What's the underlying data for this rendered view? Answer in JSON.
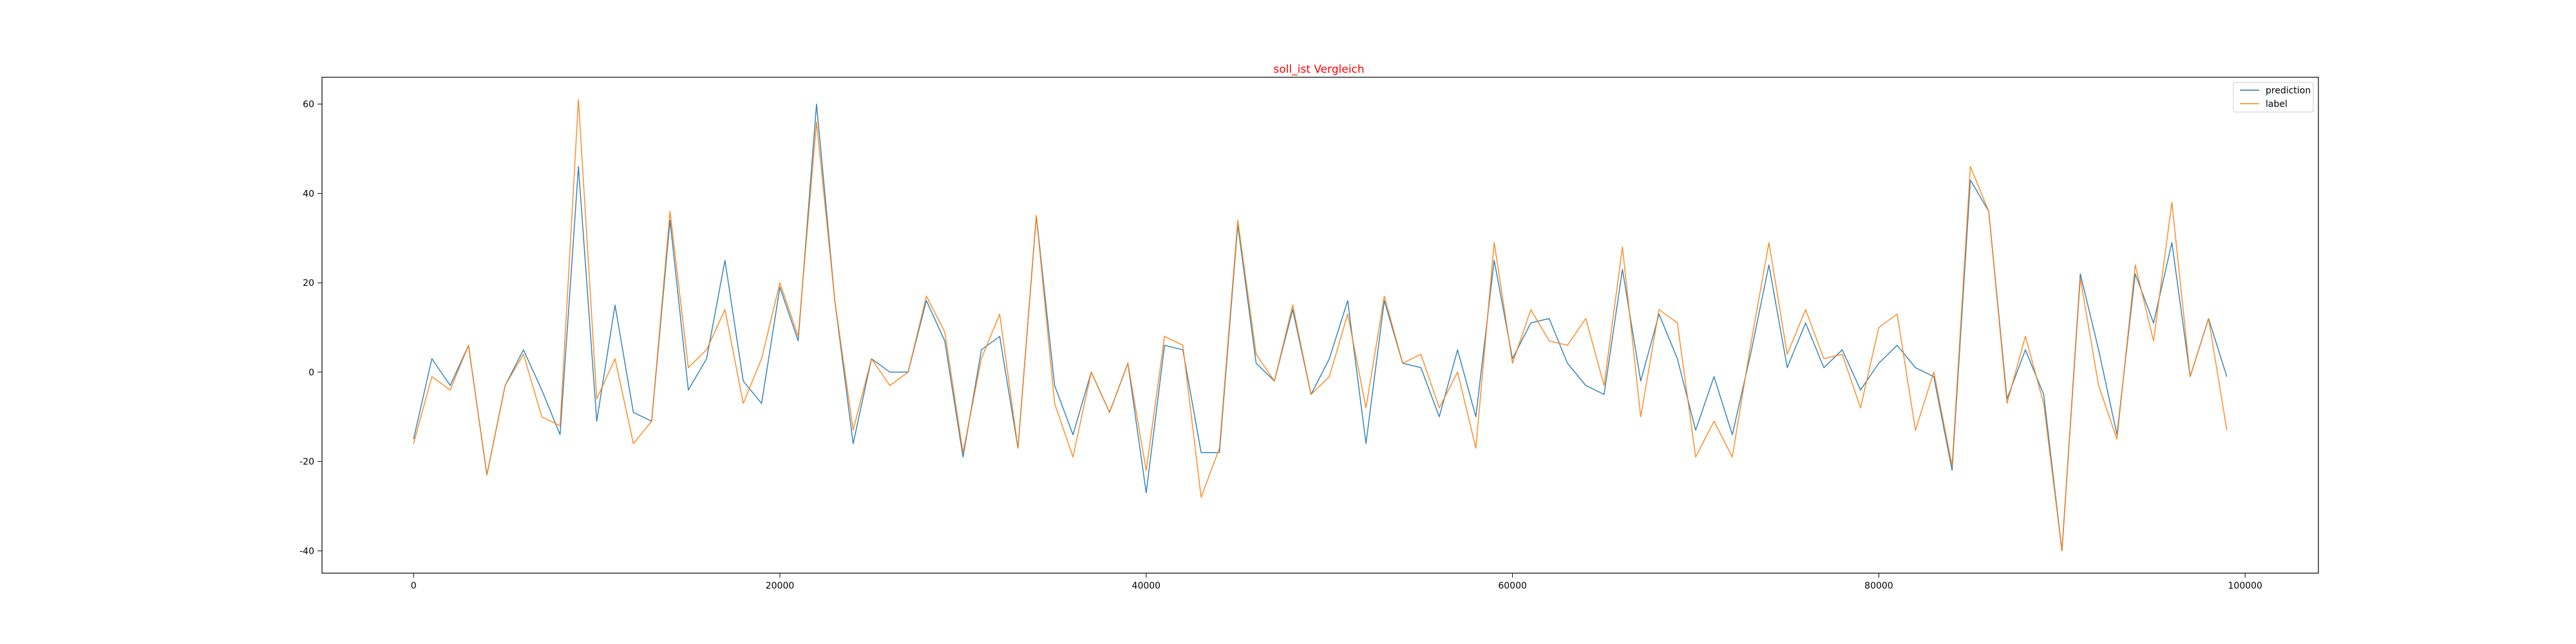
{
  "chart_data": {
    "type": "line",
    "title": "soll_ist Vergleich",
    "title_color": "#ff0000",
    "xlabel": "",
    "ylabel": "",
    "xlim": [
      -5000,
      104000
    ],
    "ylim": [
      -45,
      66
    ],
    "x_ticks": [
      0,
      20000,
      40000,
      60000,
      80000,
      100000
    ],
    "y_ticks": [
      -40,
      -20,
      0,
      20,
      40,
      60
    ],
    "grid": false,
    "legend_position": "top-right",
    "x": [
      0,
      1000,
      2000,
      3000,
      4000,
      5000,
      6000,
      7000,
      8000,
      9000,
      10000,
      11000,
      12000,
      13000,
      14000,
      15000,
      16000,
      17000,
      18000,
      19000,
      20000,
      21000,
      22000,
      23000,
      24000,
      25000,
      26000,
      27000,
      28000,
      29000,
      30000,
      31000,
      32000,
      33000,
      34000,
      35000,
      36000,
      37000,
      38000,
      39000,
      40000,
      41000,
      42000,
      43000,
      44000,
      45000,
      46000,
      47000,
      48000,
      49000,
      50000,
      51000,
      52000,
      53000,
      54000,
      55000,
      56000,
      57000,
      58000,
      59000,
      60000,
      61000,
      62000,
      63000,
      64000,
      65000,
      66000,
      67000,
      68000,
      69000,
      70000,
      71000,
      72000,
      73000,
      74000,
      75000,
      76000,
      77000,
      78000,
      79000,
      80000,
      81000,
      82000,
      83000,
      84000,
      85000,
      86000,
      87000,
      88000,
      89000,
      90000,
      91000,
      92000,
      93000,
      94000,
      95000,
      96000,
      97000,
      98000,
      99000
    ],
    "series": [
      {
        "name": "prediction",
        "color": "#1f77b4",
        "values": [
          -15,
          3,
          -3,
          6,
          -23,
          -3,
          5,
          -4,
          -14,
          46,
          -11,
          15,
          -9,
          -11,
          34,
          -4,
          3,
          25,
          -2,
          -7,
          19,
          7,
          60,
          16,
          -16,
          3,
          0,
          0,
          16,
          7,
          -19,
          5,
          8,
          -17,
          35,
          -3,
          -14,
          0,
          -9,
          2,
          -27,
          6,
          5,
          -18,
          -18,
          33,
          2,
          -2,
          14,
          -5,
          3,
          16,
          -16,
          16,
          2,
          1,
          -10,
          5,
          -10,
          25,
          3,
          11,
          12,
          2,
          -3,
          -5,
          23,
          -2,
          13,
          3,
          -13,
          -1,
          -14,
          4,
          24,
          1,
          11,
          1,
          5,
          -4,
          2,
          6,
          1,
          -1,
          -22,
          43,
          36,
          -6,
          5,
          -5,
          -40,
          22,
          5,
          -14,
          22,
          11,
          29,
          -1,
          12,
          -1
        ]
      },
      {
        "name": "label",
        "color": "#ff7f0e",
        "values": [
          -16,
          -1,
          -4,
          6,
          -23,
          -3,
          4,
          -10,
          -12,
          61,
          -6,
          3,
          -16,
          -11,
          36,
          1,
          5,
          14,
          -7,
          3,
          20,
          8,
          56,
          16,
          -13,
          3,
          -3,
          0,
          17,
          9,
          -18,
          3,
          13,
          -17,
          35,
          -7,
          -19,
          0,
          -9,
          2,
          -22,
          8,
          6,
          -28,
          -17,
          34,
          4,
          -2,
          15,
          -5,
          -1,
          13,
          -8,
          17,
          2,
          4,
          -8,
          0,
          -17,
          29,
          2,
          14,
          7,
          6,
          12,
          -3,
          28,
          -10,
          14,
          11,
          -19,
          -11,
          -19,
          6,
          29,
          4,
          14,
          3,
          4,
          -8,
          10,
          13,
          -13,
          0,
          -21,
          46,
          36,
          -7,
          8,
          -7,
          -40,
          21,
          -3,
          -15,
          24,
          7,
          38,
          -1,
          12,
          -13
        ]
      }
    ]
  }
}
